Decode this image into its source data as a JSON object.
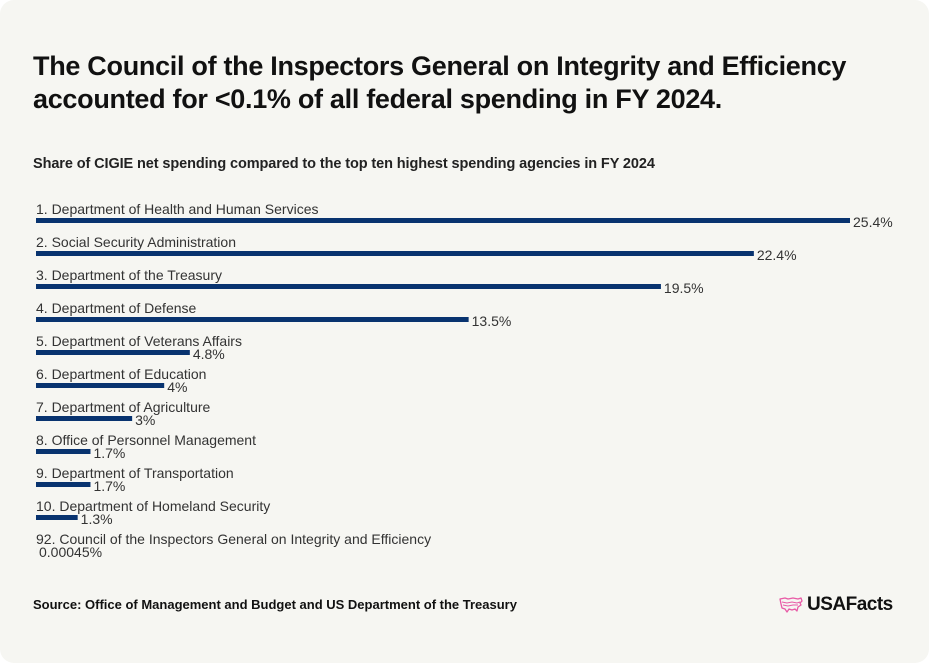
{
  "title": "The Council of the Inspectors General on Integrity and Efficiency accounted for <0.1% of all federal spending in FY 2024.",
  "subtitle": "Share of CIGIE net spending compared to the top ten highest spending agencies in FY 2024",
  "source": "Source: Office of Management and Budget and US Department of the Treasury",
  "logo": {
    "text": "USAFacts",
    "icon": "us-map-icon",
    "color": "#e85aa6"
  },
  "colors": {
    "bar": "#08336f",
    "text": "#333333",
    "background": "#f6f6f2"
  },
  "chart_data": {
    "type": "bar",
    "orientation": "horizontal",
    "title": "Share of CIGIE net spending compared to the top ten highest spending agencies in FY 2024",
    "xlabel": "",
    "ylabel": "",
    "unit": "%",
    "xlim": [
      0,
      25.4
    ],
    "grid": false,
    "categories": [
      "1. Department of Health and Human Services",
      "2. Social Security Administration",
      "3. Department of the Treasury",
      "4. Department of Defense",
      "5. Department of Veterans Affairs",
      "6. Department of Education",
      "7. Department of Agriculture",
      "8. Office of Personnel Management",
      "9. Department of Transportation",
      "10. Department of Homeland Security",
      "92. Council of the Inspectors General on Integrity and Efficiency"
    ],
    "values": [
      25.4,
      22.4,
      19.5,
      13.5,
      4.8,
      4,
      3,
      1.7,
      1.7,
      1.3,
      0.00045
    ],
    "value_labels": [
      "25.4%",
      "22.4%",
      "19.5%",
      "13.5%",
      "4.8%",
      "4%",
      "3%",
      "1.7%",
      "1.7%",
      "1.3%",
      "0.00045%"
    ]
  }
}
